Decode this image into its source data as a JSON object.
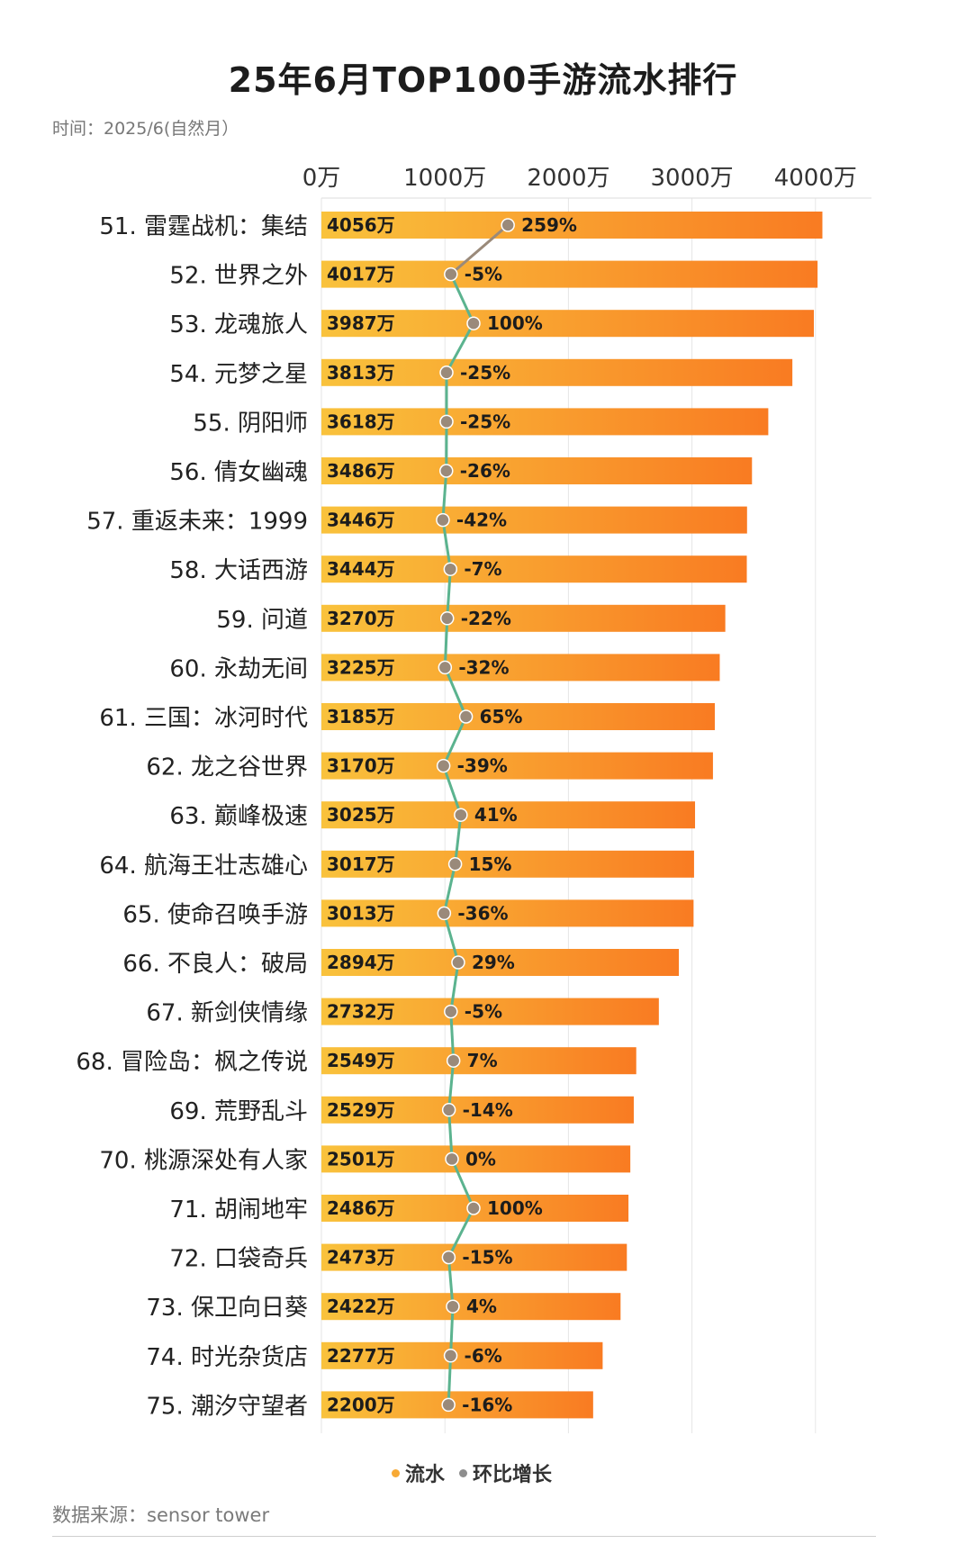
{
  "title": "25年6月TOP100手游流水排行",
  "period": "时间：2025/6(自然月）",
  "source": "数据来源：sensor tower",
  "colors": {
    "bar_start": "#f9c23c",
    "bar_end": "#f97b22",
    "line": "#5bb38f",
    "line_top": "#9a8a7a",
    "marker": "#9a8a7a",
    "value_label": "#1c1c1c"
  },
  "chart_data": {
    "type": "bar",
    "orientation": "horizontal",
    "x_axis_ticks": [
      "0万",
      "1000万",
      "2000万",
      "3000万",
      "4000万"
    ],
    "x_axis_tick_values": [
      0,
      1000,
      2000,
      3000,
      4000
    ],
    "xlim": [
      0,
      4400
    ],
    "grid": true,
    "legend_position": "bottom",
    "categories": [
      "51. 雷霆战机：集结",
      "52. 世界之外",
      "53. 龙魂旅人",
      "54. 元梦之星",
      "55. 阴阳师",
      "56. 倩女幽魂",
      "57. 重返未来：1999",
      "58. 大话西游",
      "59. 问道",
      "60. 永劫无间",
      "61. 三国：冰河时代",
      "62. 龙之谷世界",
      "63. 巅峰极速",
      "64. 航海王壮志雄心",
      "65. 使命召唤手游",
      "66. 不良人：破局",
      "67. 新剑侠情缘",
      "68. 冒险岛：枫之传说",
      "69. 荒野乱斗",
      "70. 桃源深处有人家",
      "71. 胡闹地牢",
      "72. 口袋奇兵",
      "73. 保卫向日葵",
      "74. 时光杂货店",
      "75. 潮汐守望者"
    ],
    "series": [
      {
        "name": "流水",
        "values": [
          4056,
          4017,
          3987,
          3813,
          3618,
          3486,
          3446,
          3444,
          3270,
          3225,
          3185,
          3170,
          3025,
          3017,
          3013,
          2894,
          2732,
          2549,
          2529,
          2501,
          2486,
          2473,
          2422,
          2277,
          2200
        ],
        "labels": [
          "4056万",
          "4017万",
          "3987万",
          "3813万",
          "3618万",
          "3486万",
          "3446万",
          "3444万",
          "3270万",
          "3225万",
          "3185万",
          "3170万",
          "3025万",
          "3017万",
          "3013万",
          "2894万",
          "2732万",
          "2549万",
          "2529万",
          "2501万",
          "2486万",
          "2473万",
          "2422万",
          "2277万",
          "2200万"
        ]
      },
      {
        "name": "环比增长",
        "values": [
          259,
          -5,
          100,
          -25,
          -25,
          -26,
          -42,
          -7,
          -22,
          -32,
          65,
          -39,
          41,
          15,
          -36,
          29,
          -5,
          7,
          -14,
          0,
          100,
          -15,
          4,
          -6,
          -16
        ],
        "labels": [
          "259%",
          "-5%",
          "100%",
          "-25%",
          "-25%",
          "-26%",
          "-42%",
          "-7%",
          "-22%",
          "-32%",
          "65%",
          "-39%",
          "41%",
          "15%",
          "-36%",
          "29%",
          "-5%",
          "7%",
          "-14%",
          "0%",
          "100%",
          "-15%",
          "4%",
          "-6%",
          "-16%"
        ]
      }
    ]
  }
}
